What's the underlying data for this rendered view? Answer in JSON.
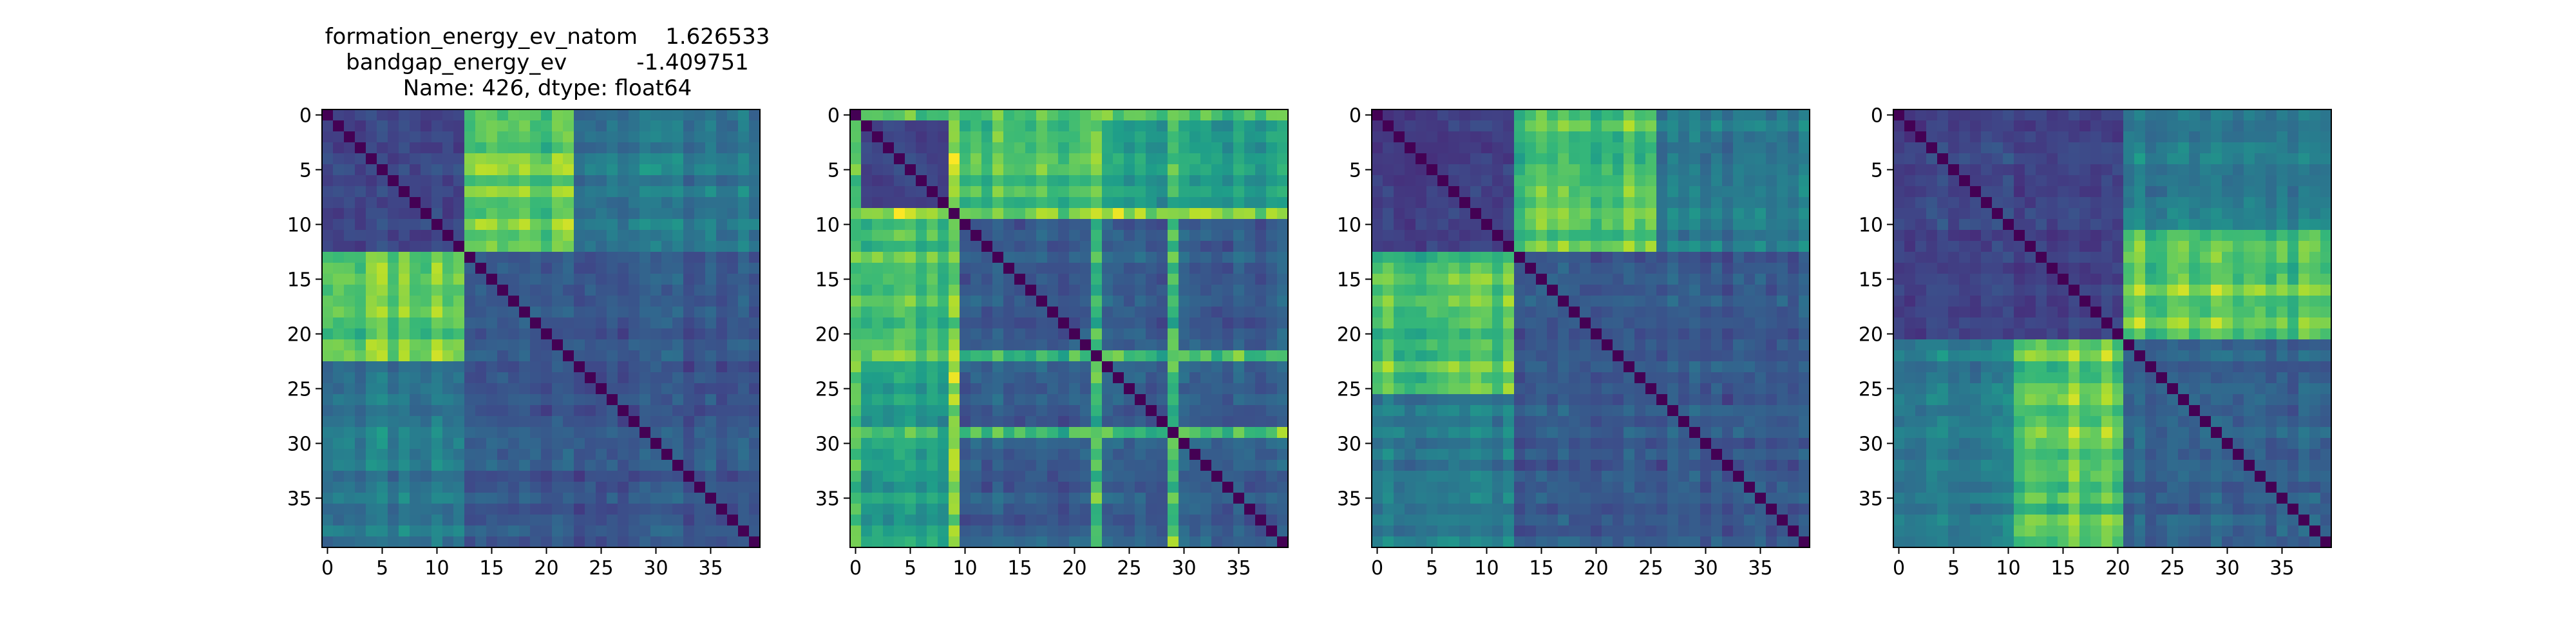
{
  "figure_title": {
    "line1": "formation_energy_ev_natom    1.626533",
    "line2": "bandgap_energy_ev          -1.409751",
    "line3": "Name: 426, dtype: float64"
  },
  "colormap": {
    "name": "viridis",
    "stops": [
      "#440154",
      "#482878",
      "#3e4989",
      "#31688e",
      "#26828e",
      "#1f9e89",
      "#35b779",
      "#6ece58",
      "#b5de2b",
      "#fde725"
    ]
  },
  "chart_data": [
    {
      "type": "heatmap",
      "size": 40,
      "xlim": [
        -0.5,
        39.5
      ],
      "ylim": [
        39.5,
        -0.5
      ],
      "xticks": [
        0,
        5,
        10,
        15,
        20,
        25,
        30,
        35
      ],
      "yticks": [
        0,
        5,
        10,
        15,
        20,
        25,
        30,
        35
      ],
      "xtick_labels": [
        "0",
        "5",
        "10",
        "15",
        "20",
        "25",
        "30",
        "35"
      ],
      "ytick_labels": [
        "0",
        "5",
        "10",
        "15",
        "20",
        "25",
        "30",
        "35"
      ],
      "diagonal_value": 0.0,
      "blocks": [
        {
          "rows": [
            0,
            12
          ],
          "cols": [
            13,
            22
          ],
          "value": 0.78
        },
        {
          "rows": [
            13,
            22
          ],
          "cols": [
            0,
            12
          ],
          "value": 0.78
        },
        {
          "rows": [
            0,
            12
          ],
          "cols": [
            23,
            39
          ],
          "value": 0.42
        },
        {
          "rows": [
            23,
            39
          ],
          "cols": [
            0,
            12
          ],
          "value": 0.42
        },
        {
          "rows": [
            0,
            12
          ],
          "cols": [
            0,
            12
          ],
          "value": 0.22
        },
        {
          "rows": [
            13,
            39
          ],
          "cols": [
            13,
            39
          ],
          "value": 0.28
        }
      ],
      "seed": 11
    },
    {
      "type": "heatmap",
      "size": 40,
      "xlim": [
        -0.5,
        39.5
      ],
      "ylim": [
        39.5,
        -0.5
      ],
      "xticks": [
        0,
        5,
        10,
        15,
        20,
        25,
        30,
        35
      ],
      "yticks": [
        0,
        5,
        10,
        15,
        20,
        25,
        30,
        35
      ],
      "xtick_labels": [
        "0",
        "5",
        "10",
        "15",
        "20",
        "25",
        "30",
        "35"
      ],
      "ytick_labels": [
        "0",
        "5",
        "10",
        "15",
        "20",
        "25",
        "30",
        "35"
      ],
      "diagonal_value": 0.0,
      "blocks": [
        {
          "rows": [
            0,
            9
          ],
          "cols": [
            10,
            22
          ],
          "value": 0.72
        },
        {
          "rows": [
            10,
            22
          ],
          "cols": [
            0,
            9
          ],
          "value": 0.72
        },
        {
          "rows": [
            0,
            9
          ],
          "cols": [
            23,
            39
          ],
          "value": 0.55
        },
        {
          "rows": [
            23,
            39
          ],
          "cols": [
            0,
            9
          ],
          "value": 0.55
        },
        {
          "rows": [
            0,
            9
          ],
          "cols": [
            0,
            9
          ],
          "value": 0.2
        },
        {
          "rows": [
            10,
            39
          ],
          "cols": [
            10,
            39
          ],
          "value": 0.3
        }
      ],
      "bands": [
        {
          "index": 0,
          "value": 0.85
        },
        {
          "index": 9,
          "value": 0.82
        },
        {
          "index": 22,
          "value": 0.7
        },
        {
          "index": 29,
          "value": 0.8
        }
      ],
      "seed": 23
    },
    {
      "type": "heatmap",
      "size": 40,
      "xlim": [
        -0.5,
        39.5
      ],
      "ylim": [
        39.5,
        -0.5
      ],
      "xticks": [
        0,
        5,
        10,
        15,
        20,
        25,
        30,
        35
      ],
      "yticks": [
        0,
        5,
        10,
        15,
        20,
        25,
        30,
        35
      ],
      "xtick_labels": [
        "0",
        "5",
        "10",
        "15",
        "20",
        "25",
        "30",
        "35"
      ],
      "ytick_labels": [
        "0",
        "5",
        "10",
        "15",
        "20",
        "25",
        "30",
        "35"
      ],
      "diagonal_value": 0.0,
      "blocks": [
        {
          "rows": [
            0,
            12
          ],
          "cols": [
            13,
            25
          ],
          "value": 0.75
        },
        {
          "rows": [
            13,
            25
          ],
          "cols": [
            0,
            12
          ],
          "value": 0.75
        },
        {
          "rows": [
            0,
            12
          ],
          "cols": [
            26,
            39
          ],
          "value": 0.4
        },
        {
          "rows": [
            26,
            39
          ],
          "cols": [
            0,
            12
          ],
          "value": 0.45
        },
        {
          "rows": [
            0,
            12
          ],
          "cols": [
            0,
            12
          ],
          "value": 0.2
        },
        {
          "rows": [
            13,
            39
          ],
          "cols": [
            13,
            39
          ],
          "value": 0.28
        }
      ],
      "seed": 37
    },
    {
      "type": "heatmap",
      "size": 40,
      "xlim": [
        -0.5,
        39.5
      ],
      "ylim": [
        39.5,
        -0.5
      ],
      "xticks": [
        0,
        5,
        10,
        15,
        20,
        25,
        30,
        35
      ],
      "yticks": [
        0,
        5,
        10,
        15,
        20,
        25,
        30,
        35
      ],
      "xtick_labels": [
        "0",
        "5",
        "10",
        "15",
        "20",
        "25",
        "30",
        "35"
      ],
      "ytick_labels": [
        "0",
        "5",
        "10",
        "15",
        "20",
        "25",
        "30",
        "35"
      ],
      "diagonal_value": 0.0,
      "blocks": [
        {
          "rows": [
            0,
            20
          ],
          "cols": [
            21,
            39
          ],
          "value": 0.42
        },
        {
          "rows": [
            21,
            39
          ],
          "cols": [
            0,
            20
          ],
          "value": 0.45
        },
        {
          "rows": [
            11,
            20
          ],
          "cols": [
            21,
            39
          ],
          "value": 0.76
        },
        {
          "rows": [
            21,
            39
          ],
          "cols": [
            11,
            20
          ],
          "value": 0.82
        },
        {
          "rows": [
            0,
            20
          ],
          "cols": [
            0,
            20
          ],
          "value": 0.22
        },
        {
          "rows": [
            21,
            39
          ],
          "cols": [
            21,
            39
          ],
          "value": 0.32
        }
      ],
      "seed": 53
    }
  ]
}
